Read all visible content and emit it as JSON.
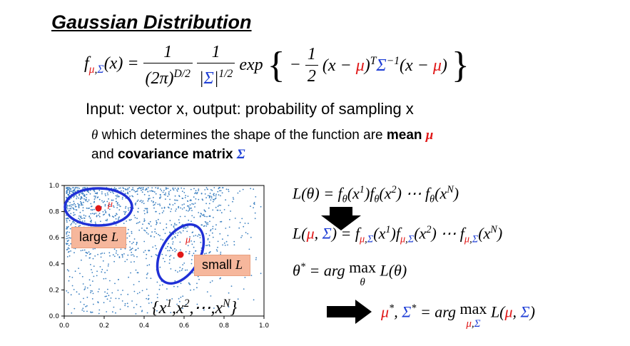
{
  "title": "Gaussian Distribution",
  "description": {
    "line1": "Input: vector x, output: probability of sampling x",
    "line2_pre": " which determines the shape of the function are ",
    "line2_bold1": "mean ",
    "line3_pre": "and ",
    "line3_bold": "covariance matrix "
  },
  "plot": {
    "x_ticks": [
      "0.0",
      "0.2",
      "0.4",
      "0.6",
      "0.8",
      "1.0"
    ],
    "y_ticks": [
      "0.0",
      "0.2",
      "0.4",
      "0.6",
      "0.8",
      "1.0"
    ],
    "large_label": "large",
    "small_label": "small",
    "point_color": "#3a7fc0",
    "ellipse_color": "#1f2fd6",
    "mean_color": "#e01818",
    "dataset_label": "{x¹,x²,⋯,xᴺ}"
  },
  "equations": {
    "eq_max": "max",
    "eq_arg": "arg"
  }
}
